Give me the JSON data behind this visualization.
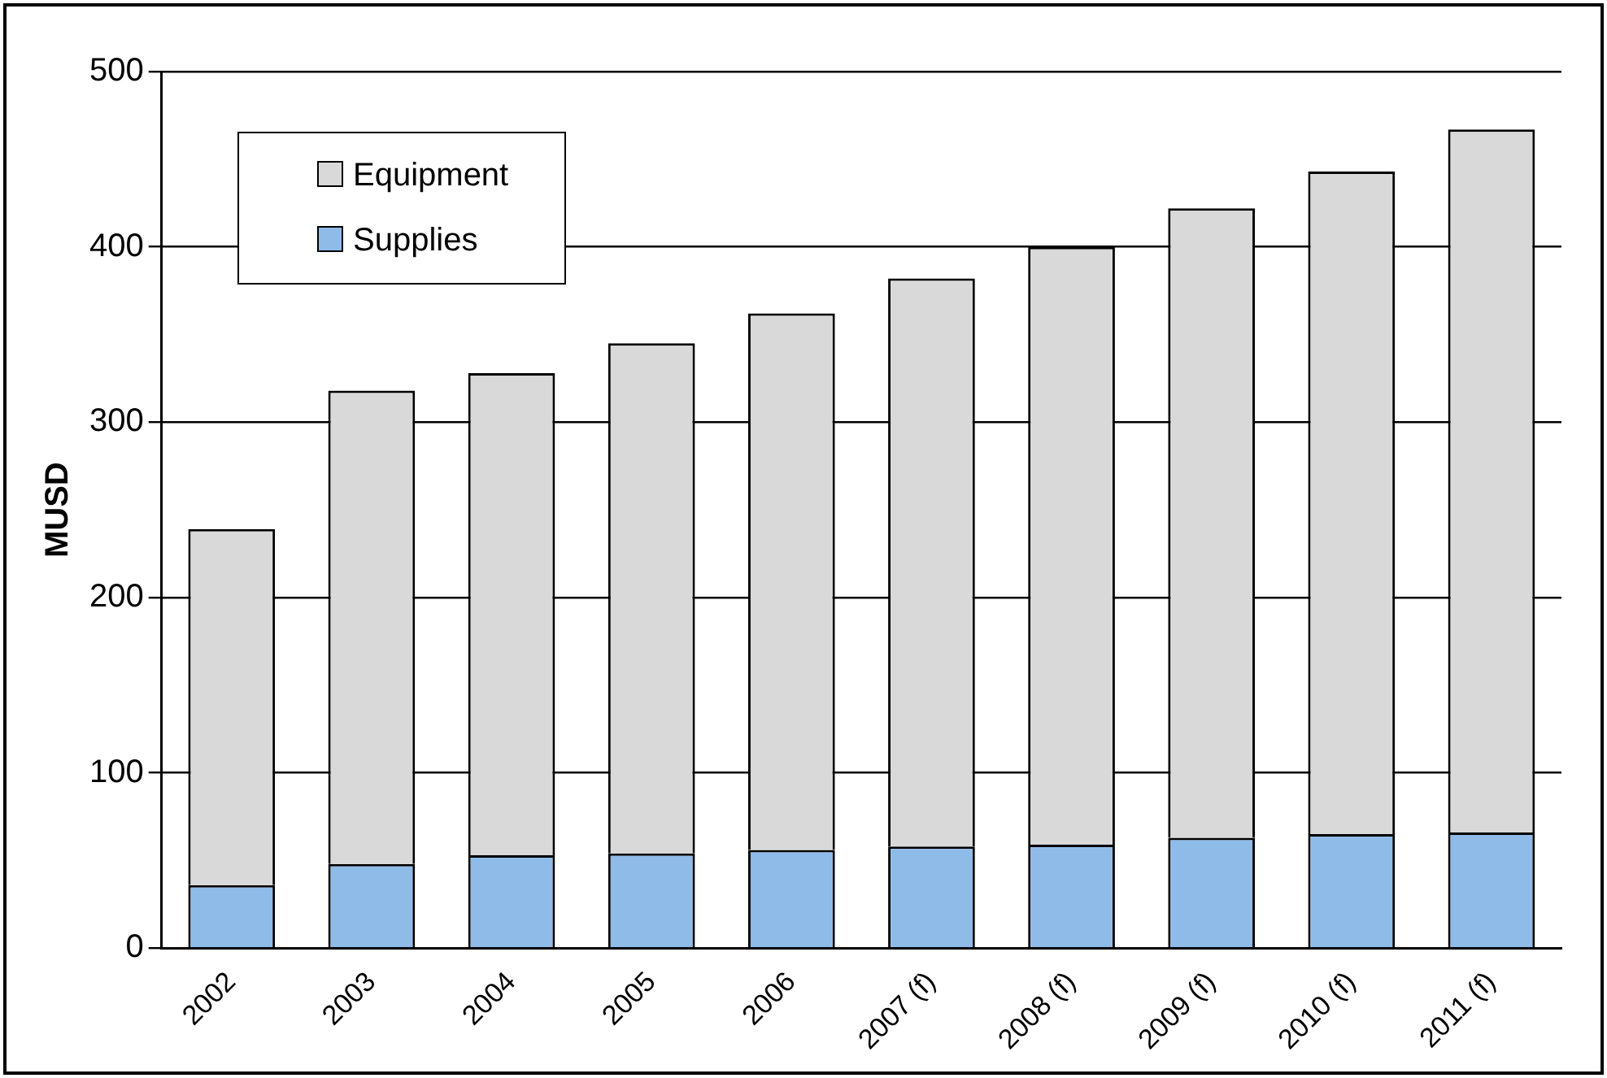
{
  "chart_data": {
    "type": "bar",
    "ylabel": "MUSD",
    "stacked": true,
    "categories": [
      "2002",
      "2003",
      "2004",
      "2005",
      "2006",
      "2007 (f)",
      "2008 (f)",
      "2009 (f)",
      "2010 (f)",
      "2011 (f)"
    ],
    "series": [
      {
        "name": "Supplies",
        "color": "#8fbbe8",
        "values": [
          36,
          48,
          53,
          54,
          56,
          58,
          59,
          63,
          65,
          66
        ]
      },
      {
        "name": "Equipment",
        "color": "#d9d9d9",
        "values": [
          203,
          270,
          275,
          291,
          306,
          324,
          341,
          359,
          378,
          401
        ]
      }
    ],
    "ylim": [
      0,
      500
    ],
    "yticks": [
      0,
      100,
      200,
      300,
      400,
      500
    ],
    "grid": "y",
    "legend": "top left"
  }
}
